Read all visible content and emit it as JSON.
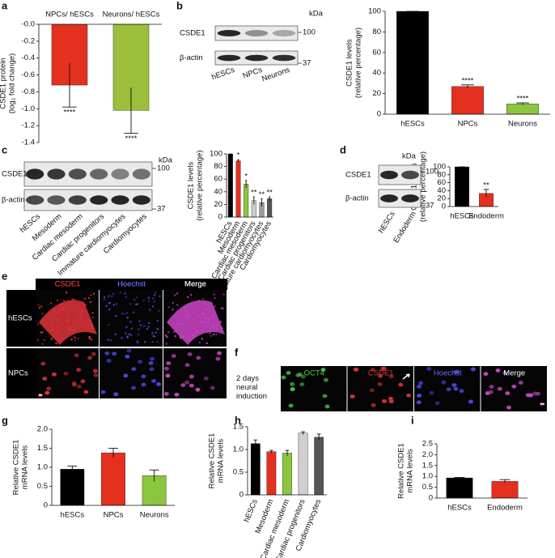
{
  "panels": [
    "a",
    "b",
    "c",
    "d",
    "e",
    "f",
    "g",
    "h",
    "i"
  ],
  "chart_data": [
    {
      "type": "bar",
      "categories": [
        "NPCs/ hESCs",
        "Neurons/ hESCs"
      ],
      "values": [
        -0.72,
        -1.02
      ],
      "errors": [
        0.26,
        0.27
      ],
      "colors": [
        "#e3301f",
        "#9bbf3a"
      ],
      "annotations": [
        "****",
        "****"
      ],
      "ylabel": [
        "CSDE1 protein",
        "(log₂ fold change)"
      ],
      "ylim": [
        -1.4,
        0
      ],
      "yticks": [
        {
          "value": 0,
          "label": "-0.0"
        },
        -0.2,
        -0.4,
        -0.6,
        -0.8,
        {
          "value": -1,
          "label": "-1.0"
        },
        -1.2,
        -1.4
      ]
    },
    {
      "type": "bar",
      "categories": [
        "hESCs",
        "NPCs",
        "Neurons"
      ],
      "values": [
        100,
        27,
        10
      ],
      "errors": [
        0,
        1.5,
        1
      ],
      "colors": [
        "#000000",
        "#e3301f",
        "#8cc63f"
      ],
      "annotations": [
        null,
        "****",
        "****"
      ],
      "ylabel": [
        "CSDE1 levels",
        "(relative percentage)"
      ],
      "ylim": [
        0,
        100
      ],
      "yticks": [
        0,
        20,
        40,
        60,
        80,
        100
      ]
    },
    {
      "type": "bar",
      "categories": [
        "hESCs",
        "Mesoderm",
        "Cardiac mesoderm",
        "Cardiac progenitors",
        "Immature cardiomyocytes",
        "Cardiomyocytes"
      ],
      "values": [
        100,
        89,
        52,
        26,
        23,
        29
      ],
      "errors": [
        0,
        2,
        6,
        6,
        6,
        3
      ],
      "colors": [
        "#000000",
        "#e3301f",
        "#8cc63f",
        "#cfcfcf",
        "#9a9a9a",
        "#555555"
      ],
      "annotations": [
        null,
        "*",
        "*",
        "**",
        "**",
        "**"
      ],
      "ylabel": [
        "CSDE1 levels",
        "(relative percentage)"
      ],
      "ylim": [
        0,
        100
      ],
      "yticks": [
        0,
        20,
        40,
        60,
        80,
        100
      ]
    },
    {
      "type": "bar",
      "categories": [
        "hESCs",
        "Endoderm"
      ],
      "values": [
        100,
        33
      ],
      "errors": [
        0,
        10
      ],
      "colors": [
        "#000000",
        "#e3301f"
      ],
      "annotations": [
        null,
        "**"
      ],
      "ylabel": [
        "CSDE1 levels",
        "(relative percentage)"
      ],
      "ylim": [
        0,
        100
      ],
      "yticks": [
        0,
        20,
        40,
        60,
        80,
        100
      ]
    },
    {
      "type": "bar",
      "categories": [
        "hESCs",
        "NPCs",
        "Neurons"
      ],
      "values": [
        0.95,
        1.38,
        0.78
      ],
      "errors": [
        0.08,
        0.12,
        0.15
      ],
      "colors": [
        "#000000",
        "#e3301f",
        "#8cc63f"
      ],
      "ylabel": [
        "Relative CSDE1",
        "mRNA levels"
      ],
      "ylim": [
        0,
        2
      ],
      "yticks": [
        0,
        0.5,
        {
          "value": 1,
          "label": "1.0"
        },
        1.5,
        {
          "value": 2,
          "label": "2.0"
        }
      ]
    },
    {
      "type": "bar",
      "categories": [
        "hESCs",
        "Mesoderm",
        "Cardiac mesoderm",
        "Cardiac progenitors",
        "Cardiomyocytes"
      ],
      "values": [
        1.13,
        0.95,
        0.92,
        1.36,
        1.27
      ],
      "errors": [
        0.08,
        0.03,
        0.06,
        0.03,
        0.07
      ],
      "colors": [
        "#000000",
        "#e3301f",
        "#8cc63f",
        "#cfcfcf",
        "#555555"
      ],
      "ylabel": [
        "Relative CSDE1",
        "mRNA levels"
      ],
      "ylim": [
        0,
        1.5
      ],
      "yticks": [
        0,
        0.5,
        {
          "value": 1,
          "label": "1.0"
        },
        1.5
      ]
    },
    {
      "type": "bar",
      "categories": [
        "hESCs",
        "Endoderm"
      ],
      "values": [
        0.93,
        0.77
      ],
      "errors": [
        0.02,
        0.08
      ],
      "colors": [
        "#000000",
        "#e3301f"
      ],
      "ylabel": [
        "Relative CSDE1",
        "mRNA levels"
      ],
      "ylim": [
        0,
        2.5
      ],
      "yticks": [
        0,
        0.5,
        {
          "value": 1,
          "label": "1.0"
        },
        1.5,
        {
          "value": 2,
          "label": "2.0"
        },
        2.5
      ]
    }
  ],
  "blots": [
    {
      "rows": [
        "CSDE1",
        "β-actin"
      ],
      "unit": "kDa",
      "markers": [
        100,
        37
      ],
      "lanes": [
        "hESCs",
        "NPCs",
        "Neurons"
      ]
    },
    {
      "rows": [
        "CSDE1",
        "β-actin"
      ],
      "unit": "kDa",
      "markers": [
        100,
        37
      ],
      "lanes": [
        "hESCs",
        "Mesoderm",
        "Cardiac mesoderm",
        "Cardiac progenitors",
        "Immature cardiomyocytes",
        "Cardiomyocytes"
      ]
    },
    {
      "rows": [
        "CSDE1",
        "β-actin"
      ],
      "unit": "kDa",
      "markers": [
        100,
        37
      ],
      "lanes": [
        "hESCs",
        "Endoderm"
      ]
    }
  ],
  "micrographs": [
    {
      "columns": [
        "CSDE1",
        "Hoechst",
        "Merge"
      ],
      "rows": [
        "hESCs",
        "NPCs"
      ]
    },
    {
      "columns": [
        "OCT4",
        "CSDE1",
        "Hoechst",
        "Merge"
      ],
      "rows": [
        "2 days neural induction"
      ]
    }
  ]
}
